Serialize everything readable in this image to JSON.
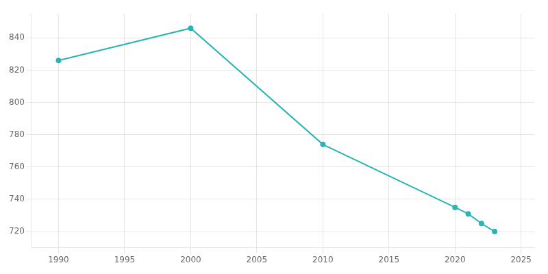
{
  "chart_data": {
    "type": "line",
    "x": [
      1990,
      2000,
      2010,
      2020,
      2021,
      2022,
      2023
    ],
    "values": [
      826,
      846,
      774,
      735,
      731,
      725,
      720
    ],
    "color": "#2ab5b5",
    "marker": "circle",
    "xlim": [
      1988,
      2026
    ],
    "ylim": [
      710,
      855
    ],
    "xticks": [
      1990,
      1995,
      2000,
      2005,
      2010,
      2015,
      2020,
      2025
    ],
    "yticks": [
      720,
      740,
      760,
      780,
      800,
      820,
      840
    ],
    "grid": true
  }
}
